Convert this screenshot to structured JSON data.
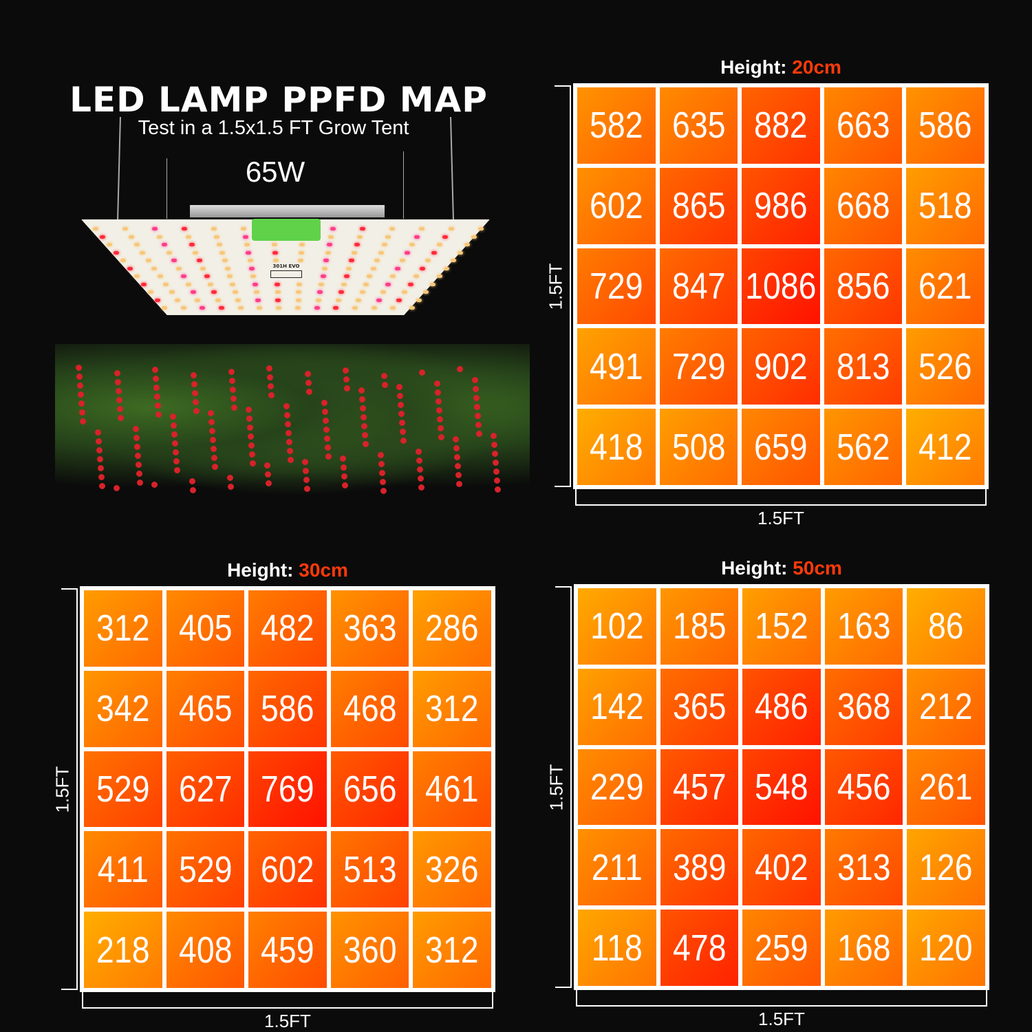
{
  "header": {
    "title": "LED LAMP PPFD MAP",
    "subtitle": "Test in a 1.5x1.5 FT Grow Tent",
    "wattage": "65W",
    "lamp_label": "301H EVO"
  },
  "colors": {
    "background": "#0b0b0b",
    "low": "#ffa800",
    "high": "#ff1a00",
    "highlight": "#ff3a0a",
    "grid_line": "#ffffff"
  },
  "chart_data": [
    {
      "type": "heatmap",
      "title_prefix": "Height: ",
      "title_value": "20cm",
      "xlabel": "1.5FT",
      "ylabel": "1.5FT",
      "values": [
        [
          582,
          635,
          882,
          663,
          586
        ],
        [
          602,
          865,
          986,
          668,
          518
        ],
        [
          729,
          847,
          1086,
          856,
          621
        ],
        [
          491,
          729,
          902,
          813,
          526
        ],
        [
          418,
          508,
          659,
          562,
          412
        ]
      ]
    },
    {
      "type": "heatmap",
      "title_prefix": "Height: ",
      "title_value": "30cm",
      "xlabel": "1.5FT",
      "ylabel": "1.5FT",
      "values": [
        [
          312,
          405,
          482,
          363,
          286
        ],
        [
          342,
          465,
          586,
          468,
          312
        ],
        [
          529,
          627,
          769,
          656,
          461
        ],
        [
          411,
          529,
          602,
          513,
          326
        ],
        [
          218,
          408,
          459,
          360,
          312
        ]
      ]
    },
    {
      "type": "heatmap",
      "title_prefix": "Height: ",
      "title_value": "50cm",
      "xlabel": "1.5FT",
      "ylabel": "1.5FT",
      "values": [
        [
          102,
          185,
          152,
          163,
          86
        ],
        [
          142,
          365,
          486,
          368,
          212
        ],
        [
          229,
          457,
          548,
          456,
          261
        ],
        [
          211,
          389,
          402,
          313,
          126
        ],
        [
          118,
          478,
          259,
          168,
          120
        ]
      ]
    }
  ]
}
